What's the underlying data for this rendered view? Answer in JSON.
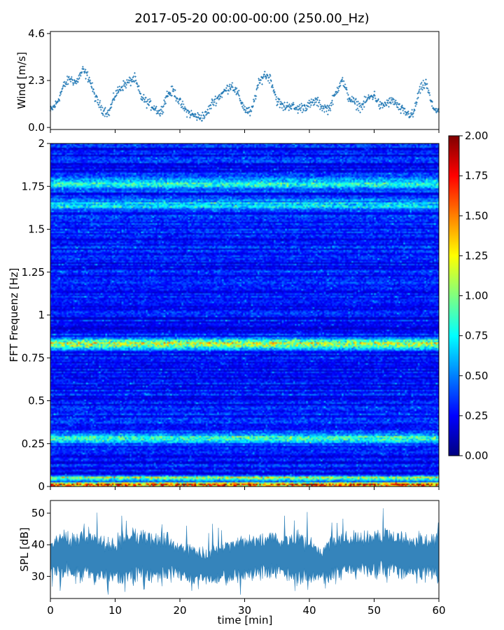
{
  "title": "2017-05-20 00:00-00:00 (250.00_Hz)",
  "chart_data": [
    {
      "type": "scatter",
      "panel": "wind",
      "ylabel": "Wind [m/s]",
      "xlim": [
        0,
        60
      ],
      "ylim": [
        -0.1,
        4.7
      ],
      "y_ticks": [
        0.0,
        2.3,
        4.6
      ],
      "y_tick_labels": [
        "0.0",
        "2.3",
        "4.6"
      ],
      "marker": "+",
      "series": [
        {
          "color": "#1f77b4",
          "x": [
            0,
            1,
            2,
            3,
            4,
            5,
            6,
            7,
            8,
            9,
            10,
            11,
            12,
            13,
            14,
            15,
            16,
            17,
            18,
            19,
            20,
            21,
            22,
            23,
            24,
            25,
            26,
            27,
            28,
            29,
            30,
            31,
            32,
            33,
            34,
            35,
            36,
            37,
            38,
            39,
            40,
            41,
            42,
            43,
            44,
            45,
            46,
            47,
            48,
            49,
            50,
            51,
            52,
            53,
            54,
            55,
            56,
            57,
            58,
            59,
            60
          ],
          "values": [
            0.8,
            1.2,
            2.0,
            2.4,
            2.2,
            2.8,
            2.4,
            1.4,
            0.9,
            0.7,
            1.6,
            2.0,
            2.2,
            2.4,
            1.5,
            1.2,
            1.0,
            0.7,
            1.6,
            1.8,
            1.2,
            0.8,
            0.6,
            0.5,
            0.6,
            1.2,
            1.5,
            1.8,
            2.1,
            1.6,
            0.9,
            0.7,
            2.0,
            2.6,
            2.4,
            1.3,
            1.0,
            1.1,
            0.9,
            1.0,
            1.1,
            1.3,
            1.0,
            0.9,
            1.6,
            2.4,
            1.5,
            1.2,
            1.0,
            1.4,
            1.6,
            1.0,
            1.2,
            1.3,
            0.9,
            0.7,
            0.6,
            1.8,
            2.2,
            1.0,
            0.8
          ]
        }
      ]
    },
    {
      "type": "heatmap",
      "panel": "spectrogram",
      "ylabel": "FFT Frequenz [Hz]",
      "xlim": [
        0,
        60
      ],
      "ylim": [
        0,
        2
      ],
      "y_ticks": [
        0,
        0.25,
        0.5,
        0.75,
        1,
        1.25,
        1.5,
        1.75,
        2
      ],
      "y_tick_labels": [
        "0",
        "0.25",
        "0.5",
        "0.75",
        "1",
        "1.25",
        "1.5",
        "1.75",
        "2"
      ],
      "colormap": "jet",
      "colorbar": {
        "range": [
          0,
          2
        ],
        "ticks": [
          0,
          0.25,
          0.5,
          0.75,
          1.0,
          1.25,
          1.5,
          1.75,
          2.0
        ],
        "tick_labels": [
          "0.00",
          "0.25",
          "0.50",
          "0.75",
          "1.00",
          "1.25",
          "1.50",
          "1.75",
          "2.00"
        ]
      },
      "features": [
        {
          "frequency": 0.83,
          "level": 0.9
        },
        {
          "frequency": 0.01,
          "level": 1.6
        },
        {
          "frequency": 0.05,
          "level": 0.9
        },
        {
          "frequency": 0.28,
          "level": 0.55
        },
        {
          "frequency": 1.76,
          "level": 0.55
        },
        {
          "frequency": 1.64,
          "level": 0.45
        }
      ]
    },
    {
      "type": "area",
      "panel": "spl",
      "ylabel": "SPL [dB]",
      "xlabel": "time [min]",
      "xlim": [
        0,
        60
      ],
      "ylim": [
        23,
        54
      ],
      "y_ticks": [
        30,
        40,
        50
      ],
      "y_tick_labels": [
        "30",
        "40",
        "50"
      ],
      "x_ticks": [
        0,
        10,
        20,
        30,
        40,
        50,
        60
      ],
      "x_tick_labels": [
        "0",
        "10",
        "20",
        "30",
        "40",
        "50",
        "60"
      ],
      "series": [
        {
          "color": "#1f77b4",
          "x": [
            0,
            2,
            4,
            6,
            8,
            10,
            12,
            14,
            16,
            18,
            20,
            22,
            24,
            26,
            28,
            30,
            32,
            34,
            36,
            38,
            40,
            42,
            44,
            46,
            48,
            50,
            52,
            54,
            56,
            58,
            60
          ],
          "center": [
            36,
            37,
            36,
            37,
            35,
            35,
            36,
            37,
            36,
            36,
            35,
            34,
            33,
            34,
            35,
            36,
            36,
            37,
            36,
            36,
            35,
            34,
            36,
            37,
            37,
            37,
            38,
            37,
            36,
            36,
            37
          ],
          "spread": [
            4,
            5,
            5,
            6,
            5,
            5,
            7,
            6,
            5,
            5,
            4,
            4,
            4,
            4,
            5,
            5,
            5,
            5,
            5,
            6,
            5,
            4,
            5,
            5,
            5,
            5,
            5,
            5,
            5,
            5,
            5
          ]
        }
      ]
    }
  ]
}
